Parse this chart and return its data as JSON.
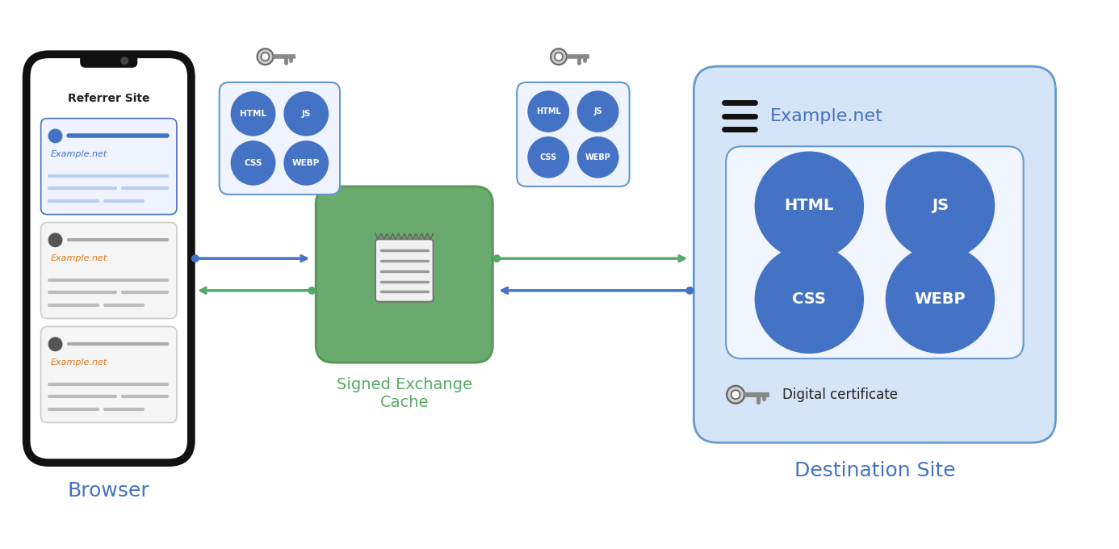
{
  "bg_color": "#ffffff",
  "blue_circle_color": "#4472c4",
  "green_box_color": "#6aaa6e",
  "green_box_edge": "#559955",
  "dest_box_fill": "#d6e4f7",
  "dest_box_edge": "#6699cc",
  "small_box_fill": "#eef3fd",
  "small_box_edge": "#6699cc",
  "inner_box_fill": "#e8f0fb",
  "inner_box_edge": "#6699cc",
  "arrow_green": "#55aa66",
  "arrow_blue": "#4472c4",
  "label_blue": "#4472c4",
  "label_green": "#55aa66",
  "phone_outline": "#111111",
  "phone_fill": "#ffffff",
  "example_net_orange": "#e07820",
  "text_color_white": "#ffffff",
  "text_color_dark": "#222222",
  "title_browser": "Browser",
  "title_cache": "Signed Exchange\nCache",
  "title_dest": "Destination Site",
  "label_referrer": "Referrer Site",
  "label_example_net": "Example.net",
  "label_html": "HTML",
  "label_js": "JS",
  "label_css": "CSS",
  "label_webp": "WEBP",
  "label_digital_cert": "Digital certificate",
  "figsize": [
    13.86,
    6.8
  ],
  "dpi": 100
}
